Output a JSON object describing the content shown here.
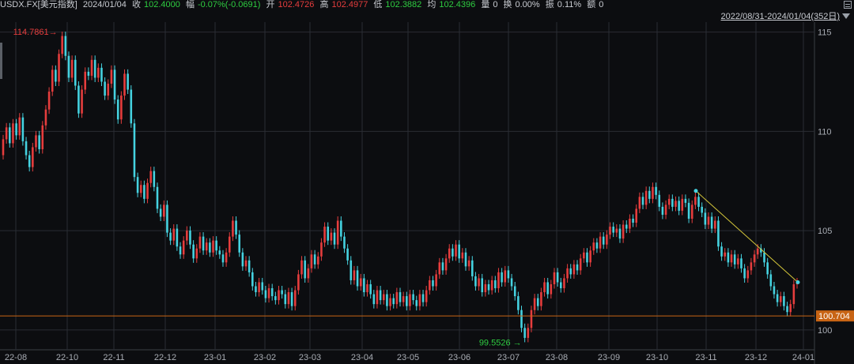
{
  "header": {
    "symbol": "USDX.FX[美元指数]",
    "date": "2024/01/04",
    "close_label": "收",
    "close_value": "102.4000",
    "change_label": "幅",
    "change_value": "-0.07%(-0.0691)",
    "open_label": "开",
    "open_value": "102.4726",
    "high_label": "高",
    "high_value": "102.4977",
    "low_label": "低",
    "low_value": "102.3882",
    "avg_label": "均",
    "avg_value": "102.4396",
    "volume_label": "量",
    "volume_value": "0",
    "turnover_label": "换",
    "turnover_value": "0.00%",
    "amplitude_label": "振",
    "amplitude_value": "0.11%",
    "amount_label": "额",
    "amount_value": "0"
  },
  "range_label": "2022/08/31-2024/01/04(352日)",
  "icons": {
    "menu": "menu-icon",
    "dropdown": "chevron-down-icon"
  },
  "colors": {
    "background": "#0c0d10",
    "up": "#e63d3d",
    "down": "#45d2e0",
    "grid": "#2a2d33",
    "hline": "#c86414",
    "trend": "#d4c63a",
    "axis_text": "#a9adb4"
  },
  "chart_data": {
    "type": "candlestick",
    "title": "",
    "xlabel": "",
    "ylabel": "",
    "ylim": [
      99.0,
      115.5
    ],
    "y_ticks": [
      100,
      105,
      110,
      115
    ],
    "x_ticks": [
      "22-08",
      "22-10",
      "22-11",
      "22-12",
      "23-01",
      "23-02",
      "23-03",
      "23-04",
      "23-05",
      "23-06",
      "23-07",
      "23-08",
      "23-09",
      "23-10",
      "23-11",
      "23-12",
      "24-01"
    ],
    "max_label": "114.7861",
    "min_label": "99.5526",
    "last_price_label": "100.704",
    "horizontal_line": 100.704,
    "trendline": [
      [
        "2023-11-03",
        107.0
      ],
      [
        "2024-01-04",
        102.4
      ]
    ],
    "grid": true,
    "series": [
      {
        "values": [
          [
            108.8,
            109.6
          ],
          [
            109.6,
            110.2
          ],
          [
            110.2,
            109.4
          ],
          [
            109.4,
            110.4
          ],
          [
            110.4,
            109.8
          ],
          [
            109.8,
            110.7
          ],
          [
            110.7,
            109.5
          ],
          [
            109.5,
            108.8
          ],
          [
            108.8,
            108.2
          ],
          [
            108.2,
            109.2
          ],
          [
            109.2,
            109.8
          ],
          [
            109.8,
            109.1
          ],
          [
            109.1,
            110.3
          ],
          [
            110.3,
            111.1
          ],
          [
            111.1,
            112.0
          ],
          [
            112.0,
            113.1
          ],
          [
            113.1,
            112.5
          ],
          [
            112.5,
            113.9
          ],
          [
            113.9,
            114.8
          ],
          [
            114.8,
            113.8
          ],
          [
            113.8,
            112.7
          ],
          [
            112.7,
            113.6
          ],
          [
            113.6,
            112.3
          ],
          [
            112.3,
            110.9
          ],
          [
            110.9,
            112.1
          ],
          [
            112.1,
            113.0
          ],
          [
            113.0,
            112.8
          ],
          [
            112.8,
            113.6
          ],
          [
            113.6,
            112.7
          ],
          [
            112.7,
            113.2
          ],
          [
            113.2,
            112.5
          ],
          [
            112.5,
            111.8
          ],
          [
            111.8,
            112.4
          ],
          [
            112.4,
            113.1
          ],
          [
            113.1,
            111.6
          ],
          [
            111.6,
            110.6
          ],
          [
            110.6,
            111.8
          ],
          [
            111.8,
            112.9
          ],
          [
            112.9,
            112.1
          ],
          [
            112.1,
            110.4
          ],
          [
            110.4,
            107.7
          ],
          [
            107.7,
            106.9
          ],
          [
            106.9,
            107.3
          ],
          [
            107.3,
            106.6
          ],
          [
            106.6,
            107.4
          ],
          [
            107.4,
            108.0
          ],
          [
            108.0,
            107.2
          ],
          [
            107.2,
            106.1
          ],
          [
            106.1,
            105.7
          ],
          [
            105.7,
            106.3
          ],
          [
            106.3,
            104.9
          ],
          [
            104.9,
            104.5
          ],
          [
            104.5,
            105.1
          ],
          [
            105.1,
            104.2
          ],
          [
            104.2,
            103.8
          ],
          [
            103.8,
            104.5
          ],
          [
            104.5,
            105.0
          ],
          [
            105.0,
            104.3
          ],
          [
            104.3,
            103.6
          ],
          [
            103.6,
            104.1
          ],
          [
            104.1,
            104.7
          ],
          [
            104.7,
            104.0
          ],
          [
            104.0,
            104.4
          ],
          [
            104.4,
            103.9
          ],
          [
            103.9,
            104.5
          ],
          [
            104.5,
            104.0
          ],
          [
            104.0,
            103.8
          ],
          [
            103.8,
            103.4
          ],
          [
            103.4,
            103.9
          ],
          [
            103.9,
            104.7
          ],
          [
            104.7,
            105.5
          ],
          [
            105.5,
            104.8
          ],
          [
            104.8,
            103.9
          ],
          [
            103.9,
            103.2
          ],
          [
            103.2,
            103.5
          ],
          [
            103.5,
            102.9
          ],
          [
            102.9,
            102.2
          ],
          [
            102.2,
            101.9
          ],
          [
            101.9,
            102.4
          ],
          [
            102.4,
            102.0
          ],
          [
            102.0,
            101.6
          ],
          [
            101.6,
            102.1
          ],
          [
            102.1,
            101.7
          ],
          [
            101.7,
            101.5
          ],
          [
            101.5,
            102.0
          ],
          [
            102.0,
            101.8
          ],
          [
            101.8,
            101.3
          ],
          [
            101.3,
            101.9
          ],
          [
            101.9,
            101.2
          ],
          [
            101.2,
            102.0
          ],
          [
            102.0,
            102.8
          ],
          [
            102.8,
            103.5
          ],
          [
            103.5,
            102.6
          ],
          [
            102.6,
            103.1
          ],
          [
            103.1,
            103.8
          ],
          [
            103.8,
            103.3
          ],
          [
            103.3,
            103.7
          ],
          [
            103.7,
            104.4
          ],
          [
            104.4,
            105.2
          ],
          [
            105.2,
            104.5
          ],
          [
            104.5,
            104.9
          ],
          [
            104.9,
            104.3
          ],
          [
            104.3,
            105.5
          ],
          [
            105.5,
            104.7
          ],
          [
            104.7,
            104.1
          ],
          [
            104.1,
            103.5
          ],
          [
            103.5,
            102.5
          ],
          [
            102.5,
            103.0
          ],
          [
            103.0,
            102.2
          ],
          [
            102.2,
            102.6
          ],
          [
            102.6,
            101.9
          ],
          [
            101.9,
            102.3
          ],
          [
            102.3,
            101.8
          ],
          [
            101.8,
            101.3
          ],
          [
            101.3,
            102.0
          ],
          [
            102.0,
            101.5
          ],
          [
            101.5,
            101.8
          ],
          [
            101.8,
            101.2
          ],
          [
            101.2,
            101.6
          ],
          [
            101.6,
            101.3
          ],
          [
            101.3,
            101.9
          ],
          [
            101.9,
            101.4
          ],
          [
            101.4,
            101.7
          ],
          [
            101.7,
            101.2
          ],
          [
            101.2,
            101.8
          ],
          [
            101.8,
            101.5
          ],
          [
            101.5,
            101.2
          ],
          [
            101.2,
            101.8
          ],
          [
            101.8,
            101.4
          ],
          [
            101.4,
            102.0
          ],
          [
            102.0,
            102.5
          ],
          [
            102.5,
            102.2
          ],
          [
            102.2,
            102.8
          ],
          [
            102.8,
            103.4
          ],
          [
            103.4,
            103.0
          ],
          [
            103.0,
            103.6
          ],
          [
            103.6,
            104.1
          ],
          [
            104.1,
            103.7
          ],
          [
            103.7,
            104.3
          ],
          [
            104.3,
            103.6
          ],
          [
            103.6,
            103.9
          ],
          [
            103.9,
            103.2
          ],
          [
            103.2,
            103.5
          ],
          [
            103.5,
            102.7
          ],
          [
            102.7,
            102.2
          ],
          [
            102.2,
            102.6
          ],
          [
            102.6,
            101.9
          ],
          [
            101.9,
            102.3
          ],
          [
            102.3,
            102.0
          ],
          [
            102.0,
            102.5
          ],
          [
            102.5,
            102.1
          ],
          [
            102.1,
            102.9
          ],
          [
            102.9,
            102.4
          ],
          [
            102.4,
            103.0
          ],
          [
            103.0,
            102.6
          ],
          [
            102.6,
            102.2
          ],
          [
            102.2,
            101.7
          ],
          [
            101.7,
            101.0
          ],
          [
            101.0,
            100.1
          ],
          [
            100.1,
            99.6
          ],
          [
            99.6,
            100.1
          ],
          [
            100.1,
            101.0
          ],
          [
            101.0,
            101.6
          ],
          [
            101.6,
            101.2
          ],
          [
            101.2,
            101.9
          ],
          [
            101.9,
            102.4
          ],
          [
            102.4,
            101.8
          ],
          [
            101.8,
            102.3
          ],
          [
            102.3,
            102.9
          ],
          [
            102.9,
            102.4
          ],
          [
            102.4,
            102.1
          ],
          [
            102.1,
            102.6
          ],
          [
            102.6,
            103.1
          ],
          [
            103.1,
            102.8
          ],
          [
            102.8,
            103.3
          ],
          [
            103.3,
            103.0
          ],
          [
            103.0,
            103.6
          ],
          [
            103.6,
            103.9
          ],
          [
            103.9,
            103.4
          ],
          [
            103.4,
            104.0
          ],
          [
            104.0,
            104.4
          ],
          [
            104.4,
            104.1
          ],
          [
            104.1,
            104.7
          ],
          [
            104.7,
            104.3
          ],
          [
            104.3,
            104.8
          ],
          [
            104.8,
            105.2
          ],
          [
            105.2,
            104.9
          ],
          [
            104.9,
            105.1
          ],
          [
            105.1,
            104.6
          ],
          [
            104.6,
            105.3
          ],
          [
            105.3,
            105.1
          ],
          [
            105.1,
            105.6
          ],
          [
            105.6,
            105.4
          ],
          [
            105.4,
            106.1
          ],
          [
            106.1,
            106.7
          ],
          [
            106.7,
            106.3
          ],
          [
            106.3,
            107.0
          ],
          [
            107.0,
            106.6
          ],
          [
            106.6,
            107.2
          ],
          [
            107.2,
            106.8
          ],
          [
            106.8,
            106.2
          ],
          [
            106.2,
            105.8
          ],
          [
            105.8,
            106.3
          ],
          [
            106.3,
            106.6
          ],
          [
            106.6,
            106.2
          ],
          [
            106.2,
            106.5
          ],
          [
            106.5,
            106.0
          ],
          [
            106.0,
            106.6
          ],
          [
            106.6,
            106.4
          ],
          [
            106.4,
            105.6
          ],
          [
            105.6,
            106.3
          ],
          [
            106.3,
            106.7
          ],
          [
            106.7,
            106.2
          ],
          [
            106.2,
            105.9
          ],
          [
            105.9,
            105.3
          ],
          [
            105.3,
            105.7
          ],
          [
            105.7,
            105.1
          ],
          [
            105.1,
            105.5
          ],
          [
            105.5,
            104.2
          ],
          [
            104.2,
            103.7
          ],
          [
            103.7,
            103.9
          ],
          [
            103.9,
            103.4
          ],
          [
            103.4,
            103.8
          ],
          [
            103.8,
            103.3
          ],
          [
            103.3,
            103.6
          ],
          [
            103.6,
            103.1
          ],
          [
            103.1,
            102.6
          ],
          [
            102.6,
            103.0
          ],
          [
            103.0,
            103.4
          ],
          [
            103.4,
            103.8
          ],
          [
            103.8,
            104.1
          ],
          [
            104.1,
            103.9
          ],
          [
            103.9,
            103.4
          ],
          [
            103.4,
            102.8
          ],
          [
            102.8,
            102.2
          ],
          [
            102.2,
            101.8
          ],
          [
            101.8,
            101.4
          ],
          [
            101.4,
            101.7
          ],
          [
            101.7,
            101.2
          ],
          [
            101.2,
            100.9
          ],
          [
            100.9,
            101.3
          ],
          [
            101.3,
            102.3
          ],
          [
            102.3,
            102.4
          ]
        ]
      }
    ]
  }
}
